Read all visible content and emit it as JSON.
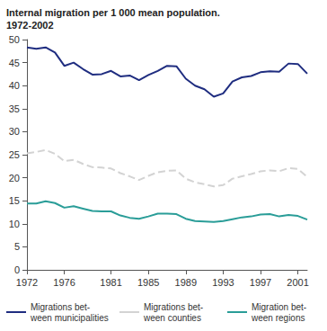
{
  "chart_data": {
    "type": "line",
    "title": "Internal migration per 1 000 mean population.\n1972-2002",
    "x": [
      1972,
      1973,
      1974,
      1975,
      1976,
      1977,
      1978,
      1979,
      1980,
      1981,
      1982,
      1983,
      1984,
      1985,
      1986,
      1987,
      1988,
      1989,
      1990,
      1991,
      1992,
      1993,
      1994,
      1995,
      1996,
      1997,
      1998,
      1999,
      2000,
      2001,
      2002
    ],
    "series": [
      {
        "name": "Migrations bet-\nween municipalities",
        "color": "#1f2d80",
        "line_style": "solid",
        "values": [
          48.3,
          48.0,
          48.3,
          47.2,
          44.3,
          45.0,
          43.6,
          42.4,
          42.5,
          43.2,
          42.0,
          42.2,
          41.2,
          42.3,
          43.2,
          44.3,
          44.2,
          41.5,
          40.0,
          39.2,
          37.6,
          38.3,
          40.9,
          41.8,
          42.1,
          42.9,
          43.1,
          43.0,
          44.8,
          44.7,
          42.6
        ]
      },
      {
        "name": "Migrations bet-\nween counties",
        "color": "#d3d3d3",
        "line_style": "dashed",
        "values": [
          25.3,
          25.6,
          26.0,
          25.2,
          23.6,
          23.9,
          23.0,
          22.3,
          22.2,
          22.0,
          21.0,
          20.3,
          19.5,
          20.4,
          21.2,
          21.5,
          21.6,
          19.8,
          19.0,
          18.6,
          18.1,
          18.4,
          19.8,
          20.3,
          20.8,
          21.4,
          21.6,
          21.4,
          22.1,
          21.9,
          20.2
        ]
      },
      {
        "name": "Migration bet-\nween regions",
        "color": "#2a9d98",
        "line_style": "solid",
        "values": [
          14.4,
          14.4,
          14.9,
          14.5,
          13.5,
          13.8,
          13.3,
          12.8,
          12.7,
          12.7,
          11.8,
          11.3,
          11.1,
          11.6,
          12.2,
          12.2,
          12.1,
          11.1,
          10.6,
          10.5,
          10.4,
          10.6,
          11.0,
          11.4,
          11.6,
          12.0,
          12.1,
          11.6,
          11.9,
          11.7,
          10.9
        ]
      }
    ],
    "xlim": [
      1972,
      2002
    ],
    "xticks": [
      1972,
      1976,
      1981,
      1985,
      1989,
      1993,
      1997,
      2001
    ],
    "ylim": [
      0,
      50
    ],
    "yticks": [
      0,
      5,
      10,
      15,
      20,
      25,
      30,
      35,
      40,
      45,
      50
    ],
    "grid": false,
    "legend": "bottom"
  }
}
